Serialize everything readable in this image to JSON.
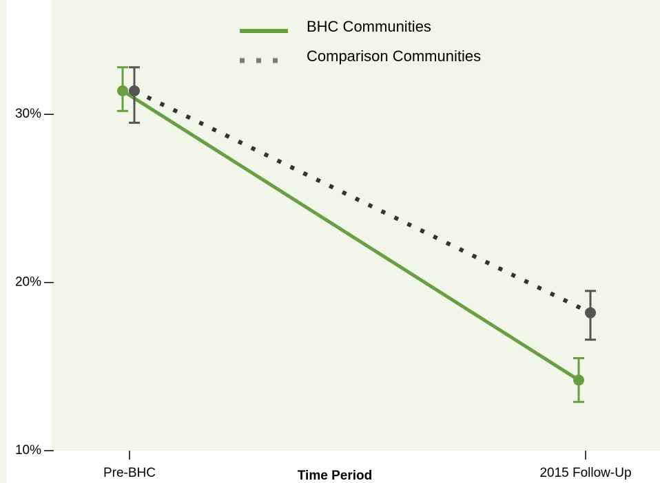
{
  "chart_data": {
    "type": "line",
    "xlabel": "Time Period",
    "categories": [
      "Pre-BHC",
      "2015 Follow-Up"
    ],
    "series": [
      {
        "name": "BHC Communities",
        "color": "#6a9e45",
        "style": "solid",
        "values": [
          31.4,
          14.2
        ],
        "lower": [
          30.2,
          12.9
        ],
        "upper": [
          32.8,
          15.5
        ]
      },
      {
        "name": "Comparison Communities",
        "color": "#555555",
        "style": "dotted",
        "values": [
          31.4,
          18.2
        ],
        "lower": [
          29.5,
          16.6
        ],
        "upper": [
          32.8,
          19.5
        ]
      }
    ],
    "ylim": [
      10,
      36.8
    ],
    "yticks": [
      {
        "value": 10,
        "label": "10%"
      },
      {
        "value": 20,
        "label": "20%"
      },
      {
        "value": 30,
        "label": "30%"
      }
    ],
    "legend": "upper center",
    "background": "#f2f6e8"
  }
}
